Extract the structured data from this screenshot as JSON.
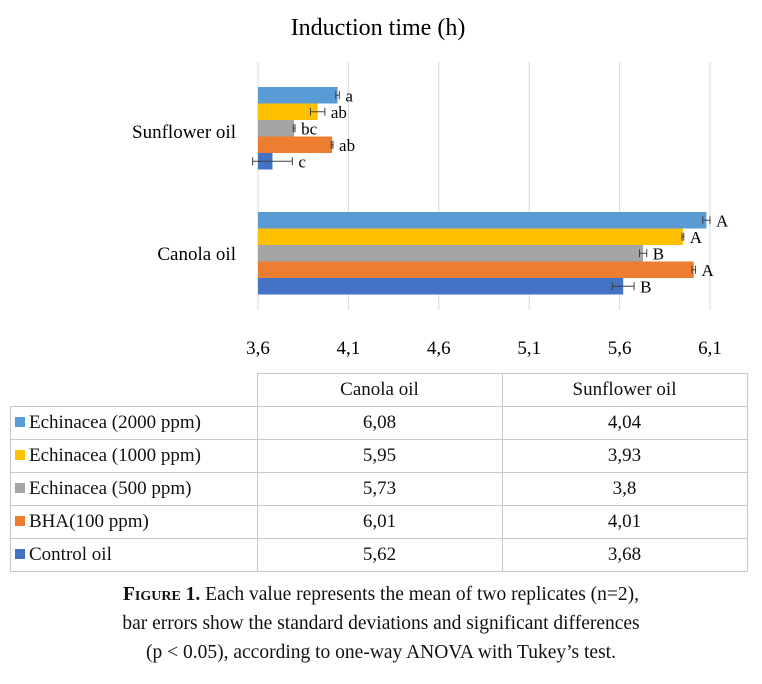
{
  "chart_data": {
    "type": "bar",
    "orientation": "horizontal",
    "title": "Induction time (h)",
    "categories": [
      "Canola oil",
      "Sunflower oil"
    ],
    "series": [
      {
        "name": "Echinacea (2000 ppm)",
        "color": "#5B9BD5",
        "values": [
          6.08,
          4.04
        ],
        "errors": [
          0.02,
          0.01
        ],
        "letters": [
          "A",
          "a"
        ]
      },
      {
        "name": "Echinacea (1000 ppm)",
        "color": "#FFC000",
        "values": [
          5.95,
          3.93
        ],
        "errors": [
          0.005,
          0.04
        ],
        "letters": [
          "A",
          "ab"
        ]
      },
      {
        "name": "Echinacea (500 ppm)",
        "color": "#A5A5A5",
        "values": [
          5.73,
          3.8
        ],
        "errors": [
          0.02,
          0.005
        ],
        "letters": [
          "B",
          "bc"
        ]
      },
      {
        "name": "BHA(100 ppm)",
        "color": "#ED7D31",
        "values": [
          6.01,
          4.01
        ],
        "errors": [
          0.01,
          0.005
        ],
        "letters": [
          "A",
          "ab"
        ]
      },
      {
        "name": "Control oil",
        "color": "#4472C4",
        "values": [
          5.62,
          3.68
        ],
        "errors": [
          0.06,
          0.11
        ],
        "letters": [
          "B",
          "c"
        ]
      }
    ],
    "xlim": [
      3.6,
      6.1
    ],
    "xticks": [
      "3,6",
      "4,1",
      "4,6",
      "5,1",
      "5,6",
      "6,1"
    ],
    "grid": "vertical",
    "legend": "data-table-below"
  },
  "table": {
    "headers": [
      "Canola oil",
      "Sunflower oil"
    ],
    "rows": [
      {
        "label": "Echinacea (2000 ppm)",
        "color": "#5B9BD5",
        "values": [
          "6,08",
          "4,04"
        ]
      },
      {
        "label": "Echinacea (1000 ppm)",
        "color": "#FFC000",
        "values": [
          "5,95",
          "3,93"
        ]
      },
      {
        "label": "Echinacea (500 ppm)",
        "color": "#A5A5A5",
        "values": [
          "5,73",
          "3,8"
        ]
      },
      {
        "label": "BHA(100 ppm)",
        "color": "#ED7D31",
        "values": [
          "6,01",
          "4,01"
        ]
      },
      {
        "label": "Control oil",
        "color": "#4472C4",
        "values": [
          "5,62",
          "3,68"
        ]
      }
    ]
  },
  "caption": {
    "lead": "F",
    "lead_sc": "igure",
    "lead_num": " 1.",
    "line1": " Each value represents the mean of two replicates (n=2),",
    "line2": "bar errors show the standard deviations and significant differences",
    "line3": "(p < 0.05), according to one-way ANOVA with Tukey’s test."
  }
}
